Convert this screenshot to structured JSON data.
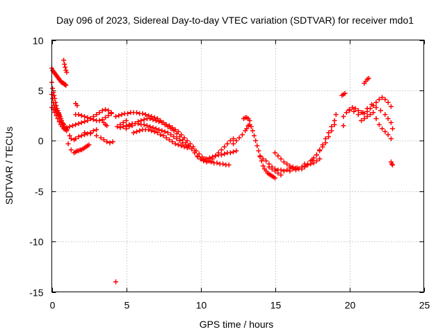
{
  "chart_data": {
    "type": "scatter",
    "title": "Day 096 of 2023, Sidereal Day-to-day VTEC variation (SDTVAR) for receiver mdo1",
    "xlabel": "GPS time / hours",
    "ylabel": "SDTVAR / TECUs",
    "xlim": [
      0,
      25
    ],
    "ylim": [
      -15,
      10
    ],
    "xticks": [
      0,
      5,
      10,
      15,
      20,
      25
    ],
    "yticks": [
      -15,
      -10,
      -5,
      0,
      5,
      10
    ],
    "xtick_labels": [
      "0",
      "5",
      "10",
      "15",
      "20",
      "25"
    ],
    "ytick_labels": [
      "-15",
      "-10",
      "-5",
      "0",
      "5",
      "10"
    ],
    "grid": true,
    "marker": "plus",
    "color": "#ff0000",
    "series": [
      {
        "name": "SDTVAR mdo1",
        "x": [
          0.0,
          0.05,
          0.1,
          0.15,
          0.2,
          0.25,
          0.3,
          0.35,
          0.4,
          0.45,
          0.5,
          0.55,
          0.6,
          0.65,
          0.7,
          0.75,
          0.8,
          0.85,
          0.9,
          0.95,
          0.0,
          0.05,
          0.1,
          0.15,
          0.2,
          0.25,
          0.3,
          0.35,
          0.4,
          0.45,
          0.5,
          0.55,
          0.6,
          0.65,
          0.7,
          0.75,
          0.8,
          0.0,
          0.05,
          0.1,
          0.15,
          0.2,
          0.25,
          0.3,
          0.35,
          0.4,
          0.45,
          0.5,
          0.55,
          0.6,
          0.65,
          0.7,
          0.75,
          0.8,
          0.85,
          0.9,
          0.95,
          1.0,
          0.0,
          0.1,
          0.2,
          0.3,
          0.4,
          0.5,
          0.6,
          0.7,
          0.8,
          0.9,
          1.0,
          0.8,
          0.85,
          0.9,
          0.95,
          1.0,
          1.2,
          1.3,
          1.5,
          1.6,
          1.8,
          2.0,
          2.2,
          2.4,
          2.6,
          2.8,
          3.0,
          1.1,
          1.3,
          1.5,
          1.6,
          1.7,
          1.8,
          1.9,
          2.0,
          2.1,
          2.2,
          2.3,
          2.4,
          2.5,
          1.6,
          1.8,
          2.0,
          2.2,
          2.4,
          2.6,
          2.8,
          3.0,
          3.2,
          3.4,
          3.6,
          3.8,
          4.0,
          1.0,
          1.2,
          1.4,
          1.6,
          1.8,
          2.0,
          2.2,
          2.4,
          2.6,
          2.8,
          3.0,
          3.2,
          3.4,
          3.6,
          3.8,
          4.0,
          2.2,
          2.6,
          3.0,
          3.3,
          3.5,
          3.7,
          3.9,
          4.1,
          1.6,
          1.7,
          3.5,
          3.6,
          3.7,
          4.3,
          4.5,
          4.7,
          4.9,
          5.1,
          5.3,
          5.5,
          5.7,
          5.9,
          6.1,
          6.3,
          6.5,
          6.7,
          6.9,
          7.1,
          7.3,
          7.5,
          7.7,
          7.9,
          8.1,
          8.3,
          8.5,
          8.7,
          8.9,
          9.1,
          9.3,
          9.5,
          5.0,
          5.2,
          5.4,
          5.6,
          5.8,
          6.0,
          6.2,
          6.4,
          6.6,
          6.8,
          7.0,
          7.2,
          7.4,
          7.6,
          7.8,
          8.0,
          8.2,
          8.4,
          8.6,
          8.8,
          9.0,
          9.2,
          9.4,
          5.5,
          5.7,
          5.9,
          6.1,
          6.3,
          6.5,
          6.7,
          6.9,
          7.1,
          7.3,
          7.5,
          7.7,
          7.9,
          8.1,
          8.3,
          8.5,
          8.7,
          8.9,
          9.1,
          4.6,
          4.8,
          5.0,
          5.2,
          5.4,
          5.6,
          5.8,
          6.0,
          6.2,
          6.4,
          6.6,
          6.8,
          7.0,
          7.2,
          7.4,
          7.6,
          7.8,
          8.0,
          8.2,
          8.4,
          8.6,
          8.8,
          9.0,
          9.2,
          9.4,
          9.6,
          4.4,
          4.6,
          4.8,
          5.0,
          9.6,
          9.8,
          10.0,
          10.2,
          10.4,
          10.6,
          10.8,
          11.0,
          11.2,
          11.4,
          11.6,
          11.8,
          12.0,
          12.2,
          9.8,
          10.0,
          10.2,
          10.4,
          10.6,
          10.8,
          11.0,
          11.2,
          11.4,
          11.6,
          11.8,
          12.0,
          12.2,
          12.4,
          9.7,
          9.9,
          10.1,
          10.3,
          10.5,
          10.7,
          10.9,
          11.1,
          11.3,
          11.5,
          11.7,
          11.9,
          12.2,
          12.4,
          12.6,
          12.8,
          13.0,
          13.1,
          13.2,
          13.3,
          13.4,
          13.5,
          13.6,
          13.7,
          13.8,
          13.9,
          14.0,
          14.1,
          14.2,
          14.3,
          14.4,
          14.5,
          14.6,
          14.7,
          14.8,
          14.9,
          15.0,
          12.9,
          13.0,
          13.1,
          13.2,
          13.3,
          14.0,
          14.2,
          14.4,
          14.6,
          14.8,
          15.0,
          15.2,
          15.4,
          15.6,
          15.8,
          16.0,
          16.2,
          16.4,
          16.6,
          16.8,
          17.0,
          17.2,
          17.4,
          17.6,
          17.8,
          18.0,
          15.0,
          15.2,
          15.4,
          15.6,
          15.8,
          16.0,
          16.2,
          16.4,
          16.6,
          16.8,
          17.0,
          17.2,
          17.4,
          17.6,
          17.8,
          18.0,
          18.2,
          18.4,
          18.6,
          18.8,
          19.0,
          14.6,
          14.8,
          15.0,
          15.2,
          15.4,
          16.0,
          16.5,
          17.0,
          17.5,
          17.8,
          18.0,
          18.2,
          18.4,
          18.6,
          18.8,
          19.0,
          19.1,
          19.5,
          19.6,
          19.7,
          19.6,
          19.8,
          20.0,
          20.2,
          20.4,
          20.6,
          20.8,
          21.0,
          21.2,
          21.4,
          21.6,
          21.8,
          22.0,
          22.2,
          22.4,
          22.6,
          22.8,
          20.0,
          20.3,
          20.6,
          20.9,
          21.2,
          21.5,
          21.8,
          22.1,
          22.4,
          22.6,
          22.8,
          22.9,
          20.8,
          21.0,
          21.2,
          21.4,
          21.6,
          21.8,
          22.0,
          22.2,
          22.4,
          22.6,
          22.8,
          21.0,
          21.1,
          21.2,
          21.3,
          19.6,
          22.8,
          22.85,
          22.9,
          4.3
        ],
        "y": [
          7.2,
          7.0,
          6.9,
          6.8,
          6.7,
          6.6,
          6.5,
          6.4,
          6.3,
          6.2,
          6.1,
          6.0,
          5.9,
          5.8,
          5.8,
          5.7,
          5.7,
          5.6,
          5.6,
          5.5,
          5.8,
          5.2,
          4.8,
          4.5,
          4.2,
          3.8,
          3.5,
          3.2,
          3.0,
          2.8,
          2.6,
          2.4,
          2.2,
          2.0,
          1.8,
          1.7,
          1.6,
          4.6,
          4.2,
          3.8,
          3.5,
          3.3,
          3.1,
          3.0,
          2.9,
          2.8,
          2.7,
          2.5,
          2.4,
          2.2,
          2.0,
          1.8,
          1.6,
          1.4,
          1.3,
          1.2,
          1.2,
          1.1,
          3.3,
          3.1,
          2.8,
          2.5,
          2.2,
          1.9,
          1.6,
          1.4,
          1.2,
          1.1,
          1.0,
          8.0,
          7.6,
          7.3,
          7.0,
          6.8,
          0.5,
          0.2,
          0.1,
          0.2,
          0.4,
          0.5,
          0.6,
          0.7,
          0.8,
          1.0,
          1.1,
          -0.3,
          -0.9,
          -1.2,
          -1.1,
          -1.0,
          -1.0,
          -0.9,
          -0.9,
          -0.8,
          -0.7,
          -0.6,
          -0.5,
          -0.4,
          2.6,
          2.6,
          2.5,
          2.4,
          2.3,
          2.2,
          2.1,
          2.0,
          2.0,
          2.1,
          2.3,
          2.5,
          2.7,
          1.3,
          1.4,
          1.5,
          1.6,
          1.7,
          1.8,
          1.9,
          2.0,
          2.2,
          2.4,
          2.6,
          2.8,
          3.0,
          3.1,
          3.0,
          2.8,
          0.8,
          0.7,
          0.5,
          0.3,
          0.1,
          -0.1,
          -0.2,
          -0.1,
          3.7,
          3.5,
          1.8,
          1.6,
          1.5,
          2.4,
          2.5,
          2.6,
          2.7,
          2.7,
          2.8,
          2.8,
          2.8,
          2.7,
          2.7,
          2.6,
          2.5,
          2.4,
          2.3,
          2.2,
          2.0,
          1.8,
          1.6,
          1.5,
          1.3,
          1.1,
          0.9,
          0.6,
          0.3,
          0.0,
          -0.3,
          -0.6,
          1.2,
          1.4,
          1.5,
          1.7,
          1.9,
          2.0,
          2.1,
          2.2,
          2.2,
          2.1,
          2.0,
          1.9,
          1.8,
          1.6,
          1.4,
          1.2,
          1.0,
          0.7,
          0.4,
          0.1,
          -0.2,
          -0.5,
          -0.8,
          0.8,
          0.9,
          1.0,
          1.1,
          1.1,
          1.1,
          1.0,
          0.9,
          0.8,
          0.6,
          0.5,
          0.3,
          0.1,
          -0.1,
          -0.3,
          -0.4,
          -0.5,
          -0.6,
          -0.7,
          1.3,
          1.4,
          1.5,
          1.6,
          1.7,
          1.7,
          1.7,
          1.6,
          1.6,
          1.5,
          1.4,
          1.3,
          1.2,
          1.1,
          1.0,
          0.9,
          0.8,
          0.6,
          0.4,
          0.2,
          0.0,
          -0.2,
          -0.4,
          -0.6,
          -0.8,
          -1.0,
          1.4,
          1.6,
          1.8,
          2.0,
          -1.2,
          -1.5,
          -1.8,
          -2.0,
          -2.1,
          -2.0,
          -1.8,
          -1.5,
          -1.2,
          -0.9,
          -0.6,
          -0.3,
          0.0,
          0.2,
          -1.6,
          -1.8,
          -1.9,
          -1.8,
          -1.7,
          -1.6,
          -1.5,
          -1.4,
          -1.4,
          -1.3,
          -1.2,
          -1.2,
          -1.1,
          -1.0,
          -1.0,
          -1.3,
          -1.6,
          -1.8,
          -2.0,
          -2.1,
          -2.2,
          -2.2,
          -2.3,
          -2.3,
          -2.4,
          -2.4,
          -0.3,
          0.0,
          0.3,
          0.6,
          1.0,
          1.2,
          1.5,
          1.6,
          1.4,
          1.0,
          0.5,
          0.0,
          -0.5,
          -1.0,
          -1.5,
          -2.0,
          -2.5,
          -2.8,
          -3.0,
          -3.2,
          -3.3,
          -3.4,
          -3.5,
          -3.6,
          -3.7,
          2.2,
          2.3,
          2.3,
          2.2,
          2.0,
          -1.6,
          -1.8,
          -2.0,
          -2.3,
          -2.6,
          -2.8,
          -2.9,
          -2.9,
          -3.0,
          -2.9,
          -2.7,
          -2.8,
          -2.9,
          -2.8,
          -2.6,
          -2.5,
          -2.4,
          -2.3,
          -2.2,
          -2.0,
          -1.8,
          -1.2,
          -1.5,
          -1.8,
          -2.1,
          -2.3,
          -2.5,
          -2.6,
          -2.7,
          -2.8,
          -2.8,
          -2.6,
          -2.3,
          -2.0,
          -1.7,
          -1.4,
          -1.0,
          -0.6,
          -0.2,
          0.4,
          1.0,
          1.6,
          -2.6,
          -2.8,
          -3.0,
          -3.2,
          -3.4,
          -3.0,
          -2.7,
          -2.3,
          -1.9,
          -1.4,
          -0.9,
          -0.4,
          0.2,
          0.8,
          1.4,
          2.0,
          2.6,
          4.5,
          4.6,
          4.7,
          2.4,
          2.8,
          3.1,
          3.3,
          3.2,
          3.0,
          2.8,
          2.7,
          2.9,
          3.2,
          3.5,
          3.8,
          4.1,
          4.3,
          4.1,
          3.8,
          3.4,
          3.0,
          2.9,
          2.6,
          2.8,
          3.2,
          3.6,
          3.3,
          3.0,
          2.6,
          2.2,
          1.8,
          1.2,
          2.0,
          2.2,
          2.4,
          2.6,
          2.8,
          2.2,
          1.6,
          1.2,
          0.9,
          0.6,
          0.2,
          5.7,
          5.9,
          6.1,
          6.2,
          1.5,
          -2.1,
          -2.3,
          -2.4,
          -14.0
        ]
      }
    ]
  }
}
